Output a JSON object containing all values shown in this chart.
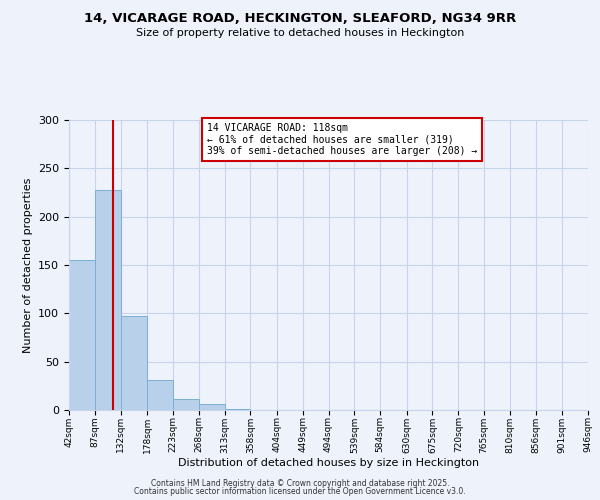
{
  "title": "14, VICARAGE ROAD, HECKINGTON, SLEAFORD, NG34 9RR",
  "subtitle": "Size of property relative to detached houses in Heckington",
  "xlabel": "Distribution of detached houses by size in Heckington",
  "ylabel": "Number of detached properties",
  "bar_values": [
    155,
    228,
    97,
    31,
    11,
    6,
    1,
    0,
    0,
    0,
    0,
    0,
    0,
    0,
    0,
    0,
    0,
    0,
    0,
    0
  ],
  "bin_edges": [
    42,
    87,
    132,
    178,
    223,
    268,
    313,
    358,
    404,
    449,
    494,
    539,
    584,
    630,
    675,
    720,
    765,
    810,
    856,
    901,
    946
  ],
  "bar_color": "#b8d0ea",
  "bar_edge_color": "#7aafd4",
  "vline_x": 118,
  "vline_color": "#cc0000",
  "annotation_title": "14 VICARAGE ROAD: 118sqm",
  "annotation_line1": "← 61% of detached houses are smaller (319)",
  "annotation_line2": "39% of semi-detached houses are larger (208) →",
  "annotation_box_color": "#cc0000",
  "ylim": [
    0,
    300
  ],
  "yticks": [
    0,
    50,
    100,
    150,
    200,
    250,
    300
  ],
  "footer1": "Contains HM Land Registry data © Crown copyright and database right 2025.",
  "footer2": "Contains public sector information licensed under the Open Government Licence v3.0.",
  "bg_color": "#eef2fb",
  "grid_color": "#c8d4ec"
}
